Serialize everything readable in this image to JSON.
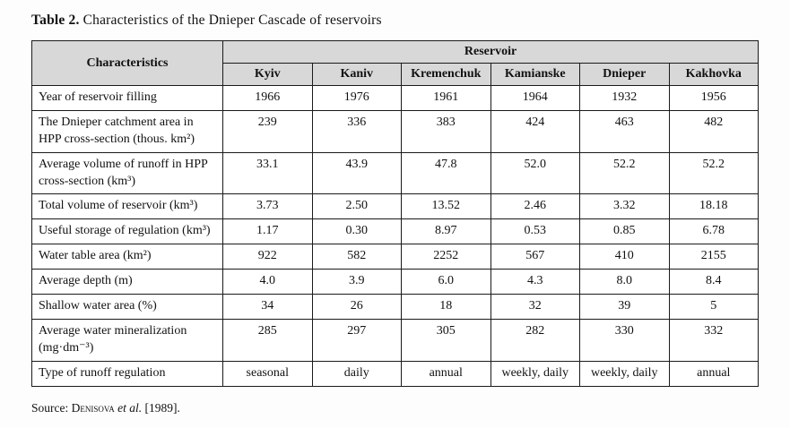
{
  "page": {
    "title_label": "Table 2.",
    "title_text": "Characteristics of the Dnieper Cascade of reservoirs"
  },
  "table": {
    "corner_header": "Characteristics",
    "group_header": "Reservoir",
    "columns": [
      "Kyiv",
      "Kaniv",
      "Kremenchuk",
      "Kamianske",
      "Dnieper",
      "Kakhovka"
    ],
    "rows": [
      {
        "label": "Year of reservoir filling",
        "values": [
          "1966",
          "1976",
          "1961",
          "1964",
          "1932",
          "1956"
        ]
      },
      {
        "label": "The Dnieper catchment area in HPP cross-section (thous. km²)",
        "values": [
          "239",
          "336",
          "383",
          "424",
          "463",
          "482"
        ]
      },
      {
        "label": "Average volume of runoff in HPP cross-section (km³)",
        "values": [
          "33.1",
          "43.9",
          "47.8",
          "52.0",
          "52.2",
          "52.2"
        ]
      },
      {
        "label": "Total volume of reservoir (km³)",
        "values": [
          "3.73",
          "2.50",
          "13.52",
          "2.46",
          "3.32",
          "18.18"
        ]
      },
      {
        "label": "Useful storage of regulation (km³)",
        "values": [
          "1.17",
          "0.30",
          "8.97",
          "0.53",
          "0.85",
          "6.78"
        ]
      },
      {
        "label": "Water table area (km²)",
        "values": [
          "922",
          "582",
          "2252",
          "567",
          "410",
          "2155"
        ]
      },
      {
        "label": "Average depth (m)",
        "values": [
          "4.0",
          "3.9",
          "6.0",
          "4.3",
          "8.0",
          "8.4"
        ]
      },
      {
        "label": "Shallow water area (%)",
        "values": [
          "34",
          "26",
          "18",
          "32",
          "39",
          "5"
        ]
      },
      {
        "label": "Average water mineralization (mg·dm⁻³)",
        "values": [
          "285",
          "297",
          "305",
          "282",
          "330",
          "332"
        ]
      },
      {
        "label": "Type of runoff regulation",
        "values": [
          "seasonal",
          "daily",
          "annual",
          "weekly, daily",
          "weekly, daily",
          "annual"
        ]
      }
    ]
  },
  "source": {
    "prefix": "Source: ",
    "author": "Denisova",
    "et_al": "et al.",
    "rest": " [1989]."
  }
}
